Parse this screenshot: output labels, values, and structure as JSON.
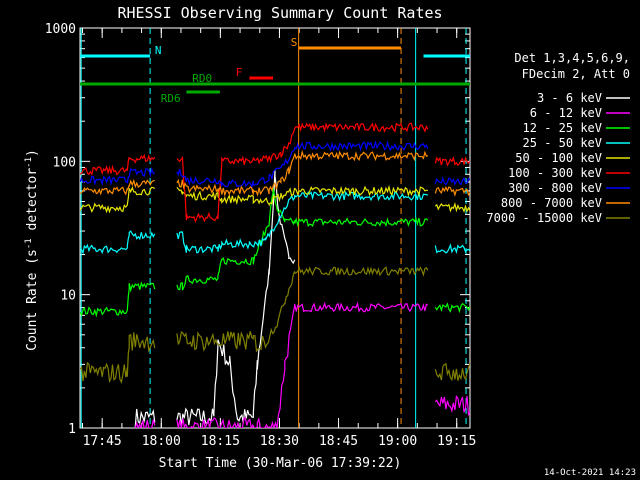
{
  "chart_data": {
    "type": "line",
    "title": "RHESSI Observing Summary Count Rates",
    "xlabel": "Start Time (30-Mar-06 17:39:22)",
    "ylabel_main": "Count Rate (s",
    "ylabel_sup1": "-1",
    "ylabel_mid": " detector",
    "ylabel_sup2": "-1",
    "ylabel_end": ")",
    "yscale": "log",
    "ylim": [
      1,
      1000
    ],
    "xlim_minutes": [
      0,
      99
    ],
    "x_tick_labels": [
      "17:45",
      "18:00",
      "18:15",
      "18:30",
      "18:45",
      "19:00",
      "19:15"
    ],
    "x_tick_minutes": [
      5.63,
      20.63,
      35.63,
      50.63,
      65.63,
      80.63,
      95.63
    ],
    "y_tick_labels": [
      "1",
      "10",
      "100",
      "1000"
    ],
    "y_tick_values": [
      1,
      10,
      100,
      1000
    ],
    "timestamp": "14-Oct-2021 14:23",
    "legend": {
      "header1": "Det 1,3,4,5,6,9,",
      "header2": "FDecim 2, Att 0",
      "entries": [
        {
          "label": "3 - 6 keV",
          "color": "#ffffff"
        },
        {
          "label": "6 - 12 keV",
          "color": "#ff00ff"
        },
        {
          "label": "12 - 25 keV",
          "color": "#00ff00"
        },
        {
          "label": "25 - 50 keV",
          "color": "#00ffff"
        },
        {
          "label": "50 - 100 keV",
          "color": "#e6e600"
        },
        {
          "label": "100 - 300 keV",
          "color": "#ff0000"
        },
        {
          "label": "300 - 800 keV",
          "color": "#0000ff"
        },
        {
          "label": "800 - 7000 keV",
          "color": "#ff8c00"
        },
        {
          "label": "7000 - 15000 keV",
          "color": "#808000"
        }
      ]
    },
    "segments": [
      [
        0,
        19
      ],
      [
        24.6,
        88.3
      ],
      [
        90.2,
        99
      ]
    ],
    "series": [
      {
        "name": "3 - 6 keV",
        "color": "#ffffff",
        "points": [
          [
            14,
            1.2
          ],
          [
            19,
            1.2
          ],
          [
            24.6,
            1.2
          ],
          [
            34,
            1.2
          ],
          [
            35,
            4.5
          ],
          [
            38,
            3.0
          ],
          [
            40,
            1.2
          ],
          [
            44,
            1.2
          ],
          [
            45,
            3
          ],
          [
            48,
            15
          ],
          [
            49.5,
            80
          ],
          [
            50.5,
            40
          ],
          [
            52,
            25
          ],
          [
            53,
            20
          ],
          [
            54.5,
            18
          ]
        ]
      },
      {
        "name": "6 - 12 keV",
        "color": "#ff00ff",
        "points": [
          [
            14,
            1.0
          ],
          [
            19,
            1.0
          ],
          [
            24.6,
            1.0
          ],
          [
            45,
            1.0
          ],
          [
            50,
            1.0
          ],
          [
            52,
            3
          ],
          [
            54.5,
            8
          ],
          [
            88.3,
            8
          ],
          [
            90.2,
            1.5
          ],
          [
            99,
            1.5
          ]
        ]
      },
      {
        "name": "12 - 25 keV",
        "color": "#00ff00",
        "points": [
          [
            0,
            7.5
          ],
          [
            12,
            7.5
          ],
          [
            12.5,
            11.5
          ],
          [
            19,
            11.5
          ],
          [
            24.6,
            11.5
          ],
          [
            26,
            11.5
          ],
          [
            27,
            13.0
          ],
          [
            35,
            13.0
          ],
          [
            36,
            18
          ],
          [
            44,
            18
          ],
          [
            48,
            35
          ],
          [
            49,
            60
          ],
          [
            50,
            45
          ],
          [
            52,
            35
          ],
          [
            54.5,
            35
          ],
          [
            88.3,
            35
          ],
          [
            90.2,
            8
          ],
          [
            99,
            8
          ]
        ]
      },
      {
        "name": "25 - 50 keV",
        "color": "#00ffff",
        "points": [
          [
            0,
            22
          ],
          [
            12,
            22
          ],
          [
            12.5,
            28
          ],
          [
            19,
            28
          ],
          [
            24.6,
            28
          ],
          [
            26,
            28
          ],
          [
            27,
            22
          ],
          [
            35,
            22
          ],
          [
            36,
            24
          ],
          [
            43,
            24
          ],
          [
            47,
            25
          ],
          [
            51,
            40
          ],
          [
            53,
            50
          ],
          [
            54.5,
            55
          ],
          [
            88.3,
            55
          ],
          [
            90.2,
            22
          ],
          [
            99,
            22
          ]
        ]
      },
      {
        "name": "50 - 100 keV",
        "color": "#e6e600",
        "points": [
          [
            0,
            45
          ],
          [
            12,
            45
          ],
          [
            12.5,
            60
          ],
          [
            19,
            60
          ],
          [
            24.6,
            60
          ],
          [
            26,
            60
          ],
          [
            27,
            55
          ],
          [
            35,
            55
          ],
          [
            36,
            52
          ],
          [
            44,
            52
          ],
          [
            48,
            50
          ],
          [
            51,
            55
          ],
          [
            54.5,
            60
          ],
          [
            88.3,
            60
          ],
          [
            90.2,
            45
          ],
          [
            99,
            45
          ]
        ]
      },
      {
        "name": "100 - 300 keV",
        "color": "#ff0000",
        "points": [
          [
            0,
            85
          ],
          [
            12,
            85
          ],
          [
            12.5,
            105
          ],
          [
            19,
            105
          ],
          [
            24.6,
            105
          ],
          [
            26,
            105
          ],
          [
            27,
            38
          ],
          [
            35,
            38
          ],
          [
            36,
            100
          ],
          [
            44,
            100
          ],
          [
            48,
            105
          ],
          [
            51,
            115
          ],
          [
            53,
            135
          ],
          [
            54.5,
            180
          ],
          [
            88.3,
            180
          ],
          [
            90.2,
            100
          ],
          [
            99,
            100
          ]
        ]
      },
      {
        "name": "300 - 800 keV",
        "color": "#0000ff",
        "points": [
          [
            0,
            72
          ],
          [
            12,
            72
          ],
          [
            12.5,
            82
          ],
          [
            19,
            82
          ],
          [
            24.6,
            82
          ],
          [
            26,
            82
          ],
          [
            27,
            72
          ],
          [
            35,
            72
          ],
          [
            36,
            68
          ],
          [
            44,
            68
          ],
          [
            48,
            75
          ],
          [
            51,
            88
          ],
          [
            53,
            105
          ],
          [
            54.5,
            130
          ],
          [
            88.3,
            130
          ],
          [
            90.2,
            70
          ],
          [
            99,
            70
          ]
        ]
      },
      {
        "name": "800 - 7000 keV",
        "color": "#ff8c00",
        "points": [
          [
            0,
            60
          ],
          [
            12,
            60
          ],
          [
            12.5,
            68
          ],
          [
            19,
            68
          ],
          [
            24.6,
            68
          ],
          [
            26,
            68
          ],
          [
            27,
            62
          ],
          [
            35,
            62
          ],
          [
            36,
            60
          ],
          [
            44,
            60
          ],
          [
            48,
            60
          ],
          [
            51,
            70
          ],
          [
            53,
            85
          ],
          [
            54.5,
            110
          ],
          [
            88.3,
            110
          ],
          [
            90.2,
            60
          ],
          [
            99,
            60
          ]
        ]
      },
      {
        "name": "7000 - 15000 keV",
        "color": "#808000",
        "points": [
          [
            0,
            2.6
          ],
          [
            12,
            2.6
          ],
          [
            12.5,
            4.5
          ],
          [
            19,
            4.5
          ],
          [
            24.6,
            4.5
          ],
          [
            44,
            4.5
          ],
          [
            46,
            4.2
          ],
          [
            50,
            6
          ],
          [
            52,
            9
          ],
          [
            54.5,
            15
          ],
          [
            88.3,
            15
          ],
          [
            90.2,
            2.6
          ],
          [
            99,
            2.6
          ]
        ]
      }
    ],
    "flags": [
      {
        "label": "N",
        "color": "#00ffff",
        "level": 0.93,
        "start": 0,
        "end": 17.8,
        "label_at": 19
      },
      {
        "label": "N",
        "color": "#00ffff",
        "level": 0.93,
        "start": 87.2,
        "end": 99,
        "label_at": null
      },
      {
        "label": "RD0",
        "color": "#00aa00",
        "level": 0.86,
        "start": 0,
        "end": 99,
        "label_at": 28.5
      },
      {
        "label": "RD6",
        "color": "#00aa00",
        "level": 0.84,
        "start": 27,
        "end": 35.5,
        "label_at": 20.5
      },
      {
        "label": "F",
        "color": "#ff0000",
        "level": 0.875,
        "start": 43,
        "end": 49,
        "label_at": 39.5
      },
      {
        "label": "S",
        "color": "#ff8c00",
        "level": 0.95,
        "start": 55.5,
        "end": 81.5,
        "label_at": 53.5
      }
    ],
    "vlines": [
      {
        "x": 0.3,
        "color": "#00ffff",
        "dash": false
      },
      {
        "x": 17.8,
        "color": "#00ffff",
        "dash": true
      },
      {
        "x": 55.5,
        "color": "#ff8c00",
        "dash": false
      },
      {
        "x": 81.5,
        "color": "#ff8c00",
        "dash": true
      },
      {
        "x": 85.2,
        "color": "#00ffff",
        "dash": false
      },
      {
        "x": 98.0,
        "color": "#00ffff",
        "dash": true
      }
    ]
  }
}
